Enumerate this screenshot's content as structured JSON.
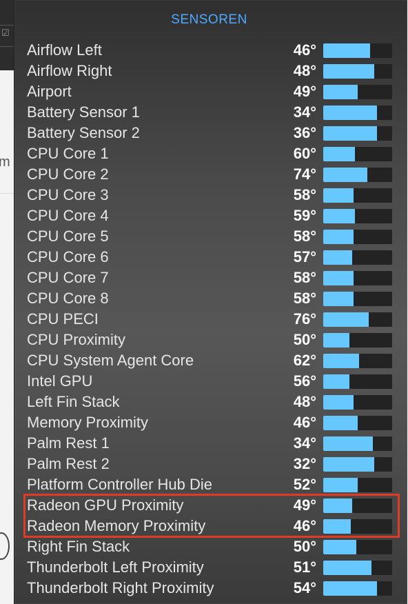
{
  "panel": {
    "title": "SENSOREN",
    "accent_color": "#4fa9ff",
    "bar_fill_color": "#66c8ff",
    "highlight_color": "#e23b24"
  },
  "sensors": [
    {
      "name": "Airflow Left",
      "temp": "46°",
      "level": 0.68
    },
    {
      "name": "Airflow Right",
      "temp": "48°",
      "level": 0.74
    },
    {
      "name": "Airport",
      "temp": "49°",
      "level": 0.5
    },
    {
      "name": "Battery Sensor 1",
      "temp": "34°",
      "level": 0.78
    },
    {
      "name": "Battery Sensor 2",
      "temp": "36°",
      "level": 0.78
    },
    {
      "name": "CPU Core 1",
      "temp": "60°",
      "level": 0.46
    },
    {
      "name": "CPU Core 2",
      "temp": "74°",
      "level": 0.64
    },
    {
      "name": "CPU Core 3",
      "temp": "58°",
      "level": 0.44
    },
    {
      "name": "CPU Core 4",
      "temp": "59°",
      "level": 0.46
    },
    {
      "name": "CPU Core 5",
      "temp": "58°",
      "level": 0.44
    },
    {
      "name": "CPU Core 6",
      "temp": "57°",
      "level": 0.42
    },
    {
      "name": "CPU Core 7",
      "temp": "58°",
      "level": 0.44
    },
    {
      "name": "CPU Core 8",
      "temp": "58°",
      "level": 0.44
    },
    {
      "name": "CPU PECI",
      "temp": "76°",
      "level": 0.66
    },
    {
      "name": "CPU Proximity",
      "temp": "50°",
      "level": 0.38
    },
    {
      "name": "CPU System Agent Core",
      "temp": "62°",
      "level": 0.52
    },
    {
      "name": "Intel GPU",
      "temp": "56°",
      "level": 0.38
    },
    {
      "name": "Left Fin Stack",
      "temp": "48°",
      "level": 0.44
    },
    {
      "name": "Memory Proximity",
      "temp": "46°",
      "level": 0.5
    },
    {
      "name": "Palm Rest 1",
      "temp": "34°",
      "level": 0.72
    },
    {
      "name": "Palm Rest 2",
      "temp": "32°",
      "level": 0.74
    },
    {
      "name": "Platform Controller Hub Die",
      "temp": "52°",
      "level": 0.5
    },
    {
      "name": "Radeon GPU Proximity",
      "temp": "49°",
      "level": 0.42
    },
    {
      "name": "Radeon Memory Proximity",
      "temp": "46°",
      "level": 0.4
    },
    {
      "name": "Right Fin Stack",
      "temp": "50°",
      "level": 0.48
    },
    {
      "name": "Thunderbolt Left Proximity",
      "temp": "51°",
      "level": 0.7
    },
    {
      "name": "Thunderbolt Right Proximity",
      "temp": "54°",
      "level": 0.78
    }
  ],
  "background_fragments": {
    "edge_letter": "m",
    "check_glyph": "☑"
  }
}
